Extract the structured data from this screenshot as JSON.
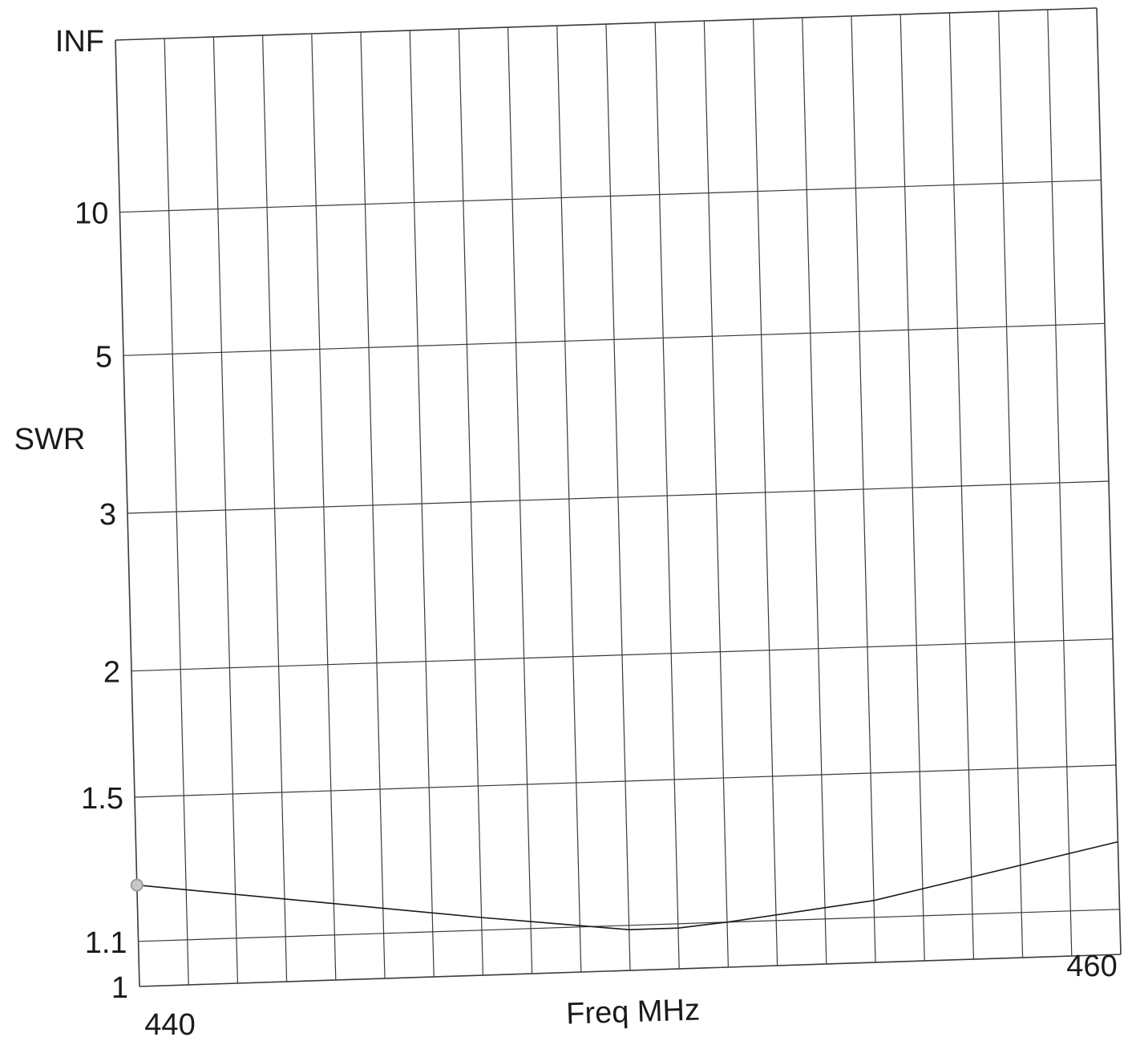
{
  "chart_data": {
    "type": "line",
    "title": "",
    "xlabel": "Freq MHz",
    "ylabel": "SWR",
    "xlim": [
      440,
      460
    ],
    "x_tick_labels": [
      {
        "value": 440,
        "label": "440"
      },
      {
        "value": 460,
        "label": "460"
      }
    ],
    "x_grid_divisions": 20,
    "y_scale": "reflection-coefficient",
    "y_tick_labels": [
      {
        "value": "INF",
        "label": "INF"
      },
      {
        "value": 10,
        "label": "10"
      },
      {
        "value": 5,
        "label": "5"
      },
      {
        "value": 3,
        "label": "3"
      },
      {
        "value": 2,
        "label": "2"
      },
      {
        "value": 1.5,
        "label": "1.5"
      },
      {
        "value": 1.1,
        "label": "1.1"
      },
      {
        "value": 1,
        "label": "1"
      }
    ],
    "grid": true,
    "series": [
      {
        "x": [
          440,
          447,
          450,
          451,
          452,
          455,
          460
        ],
        "y": [
          1.24,
          1.13,
          1.09,
          1.09,
          1.1,
          1.14,
          1.27
        ]
      }
    ],
    "colors": {
      "grid": "#3a3a3a",
      "line": "#1a1a1a",
      "marker": "#9a9a9a"
    }
  }
}
